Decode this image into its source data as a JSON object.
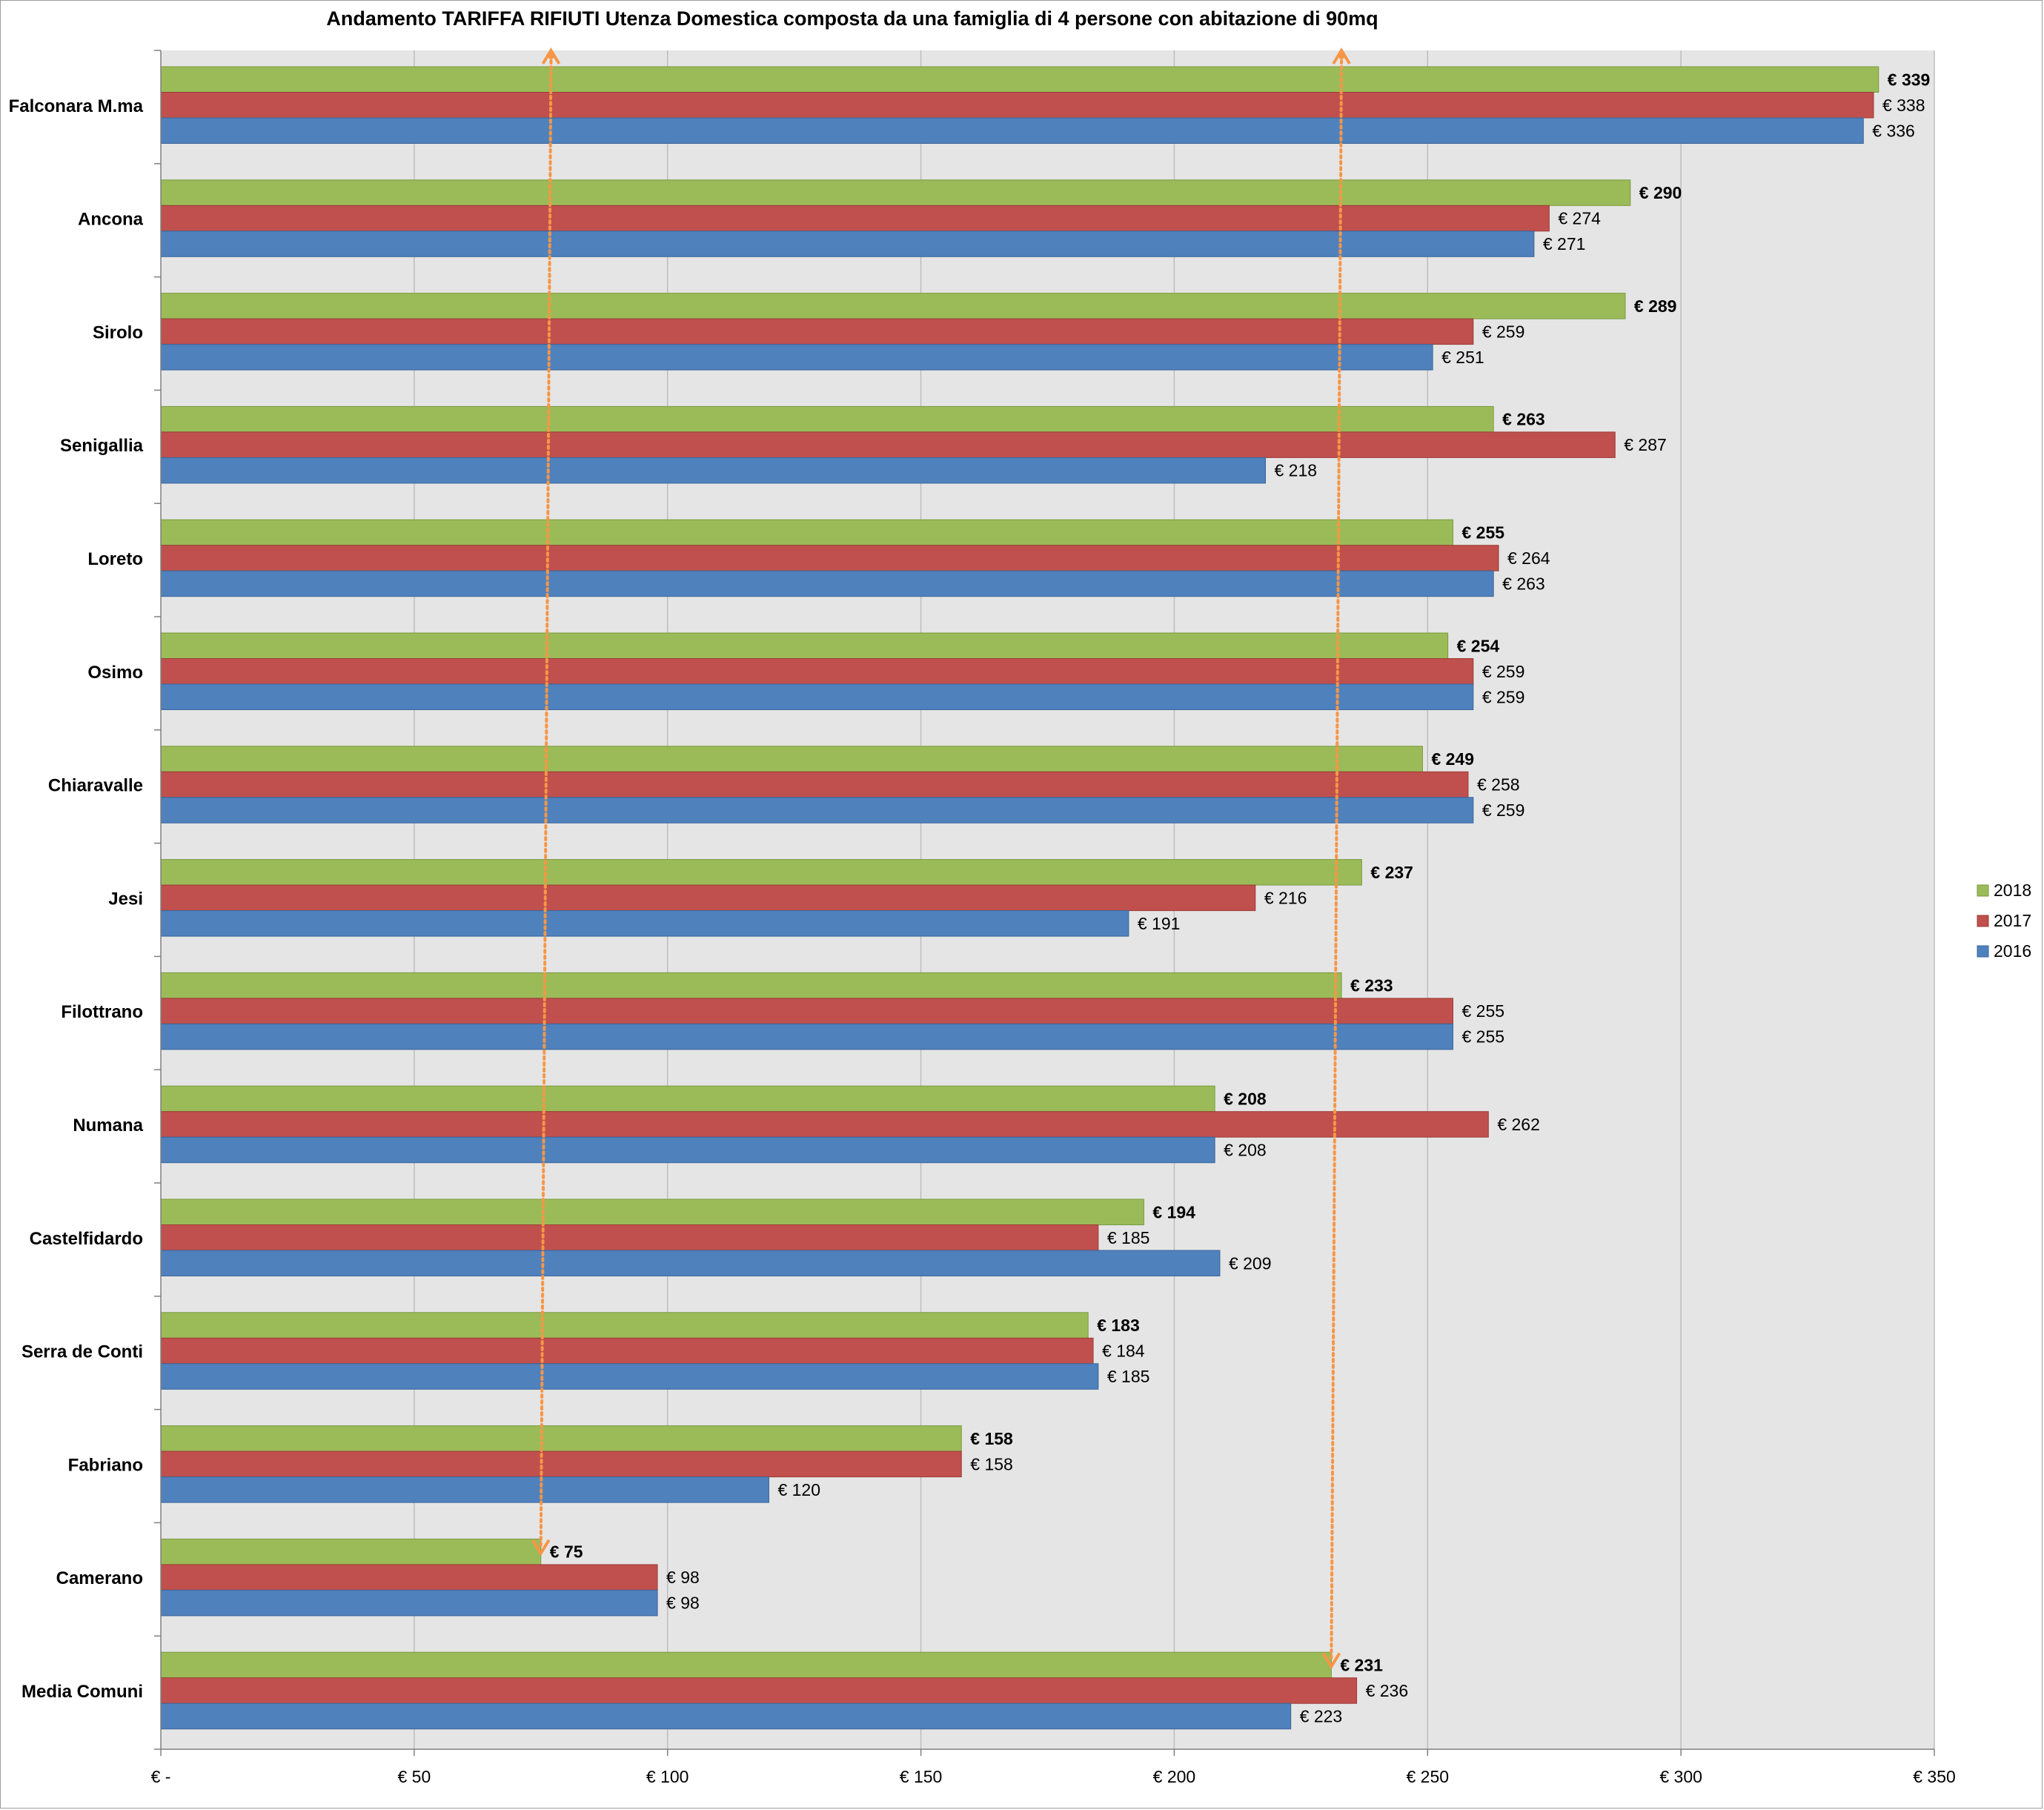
{
  "chart_data": {
    "type": "bar",
    "orientation": "horizontal",
    "title": "Andamento TARIFFA RIFIUTI Utenza Domestica composta da una famiglia di 4 persone con abitazione di 90mq",
    "xlabel": "",
    "ylabel": "",
    "xlim": [
      0,
      350
    ],
    "x_ticks": [
      0,
      50,
      100,
      150,
      200,
      250,
      300,
      350
    ],
    "x_tick_labels": [
      "€ -",
      "€ 50",
      "€ 100",
      "€ 150",
      "€ 200",
      "€ 250",
      "€ 300",
      "€ 350"
    ],
    "grid": true,
    "legend_position": "right",
    "value_prefix": "€ ",
    "categories": [
      "Falconara M.ma",
      "Ancona",
      "Sirolo",
      "Senigallia",
      "Loreto",
      "Osimo",
      "Chiaravalle",
      "Jesi",
      "Filottrano",
      "Numana",
      "Castelfidardo",
      "Serra de Conti",
      "Fabriano",
      "Camerano",
      "Media Comuni"
    ],
    "series": [
      {
        "name": "2018",
        "color": "#9bbb59",
        "border": "#7a9a3c",
        "label_bold": true,
        "values": [
          339,
          290,
          289,
          263,
          255,
          254,
          249,
          237,
          233,
          208,
          194,
          183,
          158,
          75,
          231
        ]
      },
      {
        "name": "2017",
        "color": "#c0504d",
        "border": "#9c3b38",
        "label_bold": false,
        "values": [
          338,
          274,
          259,
          287,
          264,
          259,
          258,
          216,
          255,
          262,
          185,
          184,
          158,
          98,
          236
        ]
      },
      {
        "name": "2016",
        "color": "#4f81bd",
        "border": "#3a6699",
        "label_bold": false,
        "values": [
          336,
          271,
          251,
          218,
          263,
          259,
          259,
          191,
          255,
          208,
          209,
          185,
          120,
          98,
          223
        ]
      }
    ],
    "annotations": [
      {
        "type": "dotted-double-arrow",
        "color": "#f79646",
        "x_top": 77,
        "x_bottom": 75,
        "from_category": "Falconara M.ma",
        "to_category": "Camerano"
      },
      {
        "type": "dotted-double-arrow",
        "color": "#f79646",
        "x_top": 233,
        "x_bottom": 231,
        "from_category": "Falconara M.ma",
        "to_category": "Media Comuni"
      }
    ]
  },
  "colors": {
    "plot_background": "#e5e5e5",
    "gridline": "#bdbdbd",
    "axis": "#808080",
    "annotation": "#f79646"
  }
}
